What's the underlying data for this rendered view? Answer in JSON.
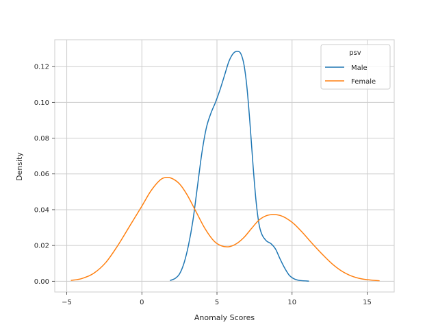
{
  "chart_data": {
    "type": "line",
    "title": "",
    "xlabel": "Anomaly Scores",
    "ylabel": "Density",
    "xlim": [
      -5.8,
      16.8
    ],
    "ylim": [
      -0.006,
      0.135
    ],
    "xticks": [
      -5,
      0,
      5,
      10,
      15
    ],
    "xtick_labels": [
      "−5",
      "0",
      "5",
      "10",
      "15"
    ],
    "yticks": [
      0.0,
      0.02,
      0.04,
      0.06,
      0.08,
      0.1,
      0.12
    ],
    "ytick_labels": [
      "0.00",
      "0.02",
      "0.04",
      "0.06",
      "0.08",
      "0.10",
      "0.12"
    ],
    "grid": true,
    "legend": {
      "title": "psv",
      "placement": "top-right"
    },
    "series": [
      {
        "name": "Male",
        "color": "#1f77b4",
        "x": [
          1.9,
          2.2,
          2.5,
          2.8,
          3.1,
          3.4,
          3.7,
          4.0,
          4.3,
          4.6,
          4.9,
          5.2,
          5.5,
          5.8,
          6.1,
          6.4,
          6.6,
          6.8,
          7.0,
          7.2,
          7.4,
          7.6,
          7.8,
          8.0,
          8.3,
          8.6,
          8.9,
          9.2,
          9.5,
          9.8,
          10.1,
          10.4,
          10.7,
          11.1
        ],
        "y": [
          0.0005,
          0.0015,
          0.004,
          0.01,
          0.02,
          0.034,
          0.053,
          0.072,
          0.086,
          0.094,
          0.1,
          0.107,
          0.115,
          0.123,
          0.1275,
          0.1285,
          0.127,
          0.121,
          0.108,
          0.088,
          0.065,
          0.045,
          0.032,
          0.026,
          0.0225,
          0.021,
          0.018,
          0.0125,
          0.0075,
          0.0035,
          0.0015,
          0.0006,
          0.0003,
          0.0001
        ]
      },
      {
        "name": "Female",
        "color": "#ff7f0e",
        "x": [
          -4.7,
          -4.0,
          -3.2,
          -2.4,
          -1.6,
          -0.8,
          0.0,
          0.6,
          1.2,
          1.6,
          2.0,
          2.5,
          3.0,
          3.6,
          4.2,
          4.8,
          5.3,
          5.8,
          6.3,
          6.8,
          7.3,
          7.8,
          8.3,
          8.8,
          9.2,
          9.6,
          10.1,
          10.7,
          11.3,
          12.0,
          12.7,
          13.4,
          14.1,
          14.8,
          15.8
        ],
        "y": [
          0.0005,
          0.0015,
          0.0045,
          0.0105,
          0.02,
          0.031,
          0.042,
          0.0505,
          0.0565,
          0.058,
          0.0575,
          0.0545,
          0.0485,
          0.039,
          0.0295,
          0.0225,
          0.0198,
          0.0193,
          0.021,
          0.0245,
          0.0295,
          0.0342,
          0.0367,
          0.0373,
          0.0368,
          0.0353,
          0.0323,
          0.0272,
          0.0215,
          0.0152,
          0.0095,
          0.0052,
          0.0025,
          0.0011,
          0.0003
        ]
      }
    ]
  }
}
